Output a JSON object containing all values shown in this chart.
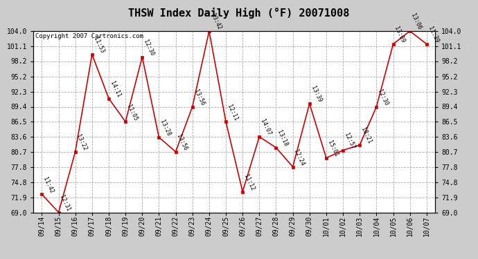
{
  "title": "THSW Index Daily High (°F) 20071008",
  "copyright": "Copyright 2007 Cartronics.com",
  "dates": [
    "09/14",
    "09/15",
    "09/16",
    "09/17",
    "09/18",
    "09/19",
    "09/20",
    "09/21",
    "09/22",
    "09/23",
    "09/24",
    "09/25",
    "09/26",
    "09/27",
    "09/28",
    "09/29",
    "09/30",
    "10/01",
    "10/02",
    "10/03",
    "10/04",
    "10/05",
    "10/06",
    "10/07"
  ],
  "values": [
    72.5,
    69.0,
    80.7,
    99.5,
    91.0,
    86.5,
    99.0,
    83.5,
    80.7,
    89.4,
    104.0,
    86.5,
    73.0,
    83.6,
    81.5,
    77.8,
    90.0,
    79.5,
    81.0,
    82.0,
    89.4,
    101.5,
    104.0,
    101.5
  ],
  "labels": [
    "11:42",
    "12:31",
    "13:22",
    "11:53",
    "14:11",
    "11:05",
    "12:30",
    "13:28",
    "13:56",
    "13:56",
    "13:42",
    "12:11",
    "11:12",
    "14:07",
    "13:18",
    "12:24",
    "13:39",
    "15:01",
    "12:57",
    "18:21",
    "12:30",
    "13:09",
    "13:06",
    "11:39"
  ],
  "ylim": [
    69.0,
    104.0
  ],
  "yticks": [
    69.0,
    71.9,
    74.8,
    77.8,
    80.7,
    83.6,
    86.5,
    89.4,
    92.3,
    95.2,
    98.2,
    101.1,
    104.0
  ],
  "line_color": "#cc0000",
  "marker_color": "#cc0000",
  "bg_color": "#cccccc",
  "plot_bg_color": "#ffffff",
  "grid_color": "#aaaaaa",
  "title_fontsize": 11,
  "label_fontsize": 6,
  "tick_fontsize": 7,
  "copyright_fontsize": 6.5
}
